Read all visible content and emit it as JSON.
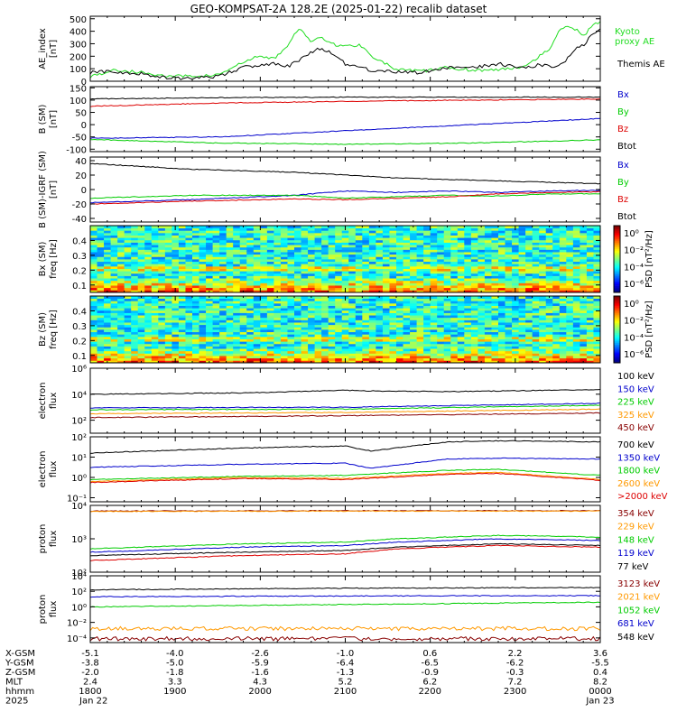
{
  "title": "GEO-KOMPSAT-2A 128.2E (2025-01-22) recalib dataset",
  "colors": {
    "black": "#000000",
    "blue": "#0000cc",
    "green": "#00cc00",
    "red": "#dd0000",
    "orange": "#ff9900",
    "darkred": "#880000",
    "lime": "#22dd22"
  },
  "chart_data": [
    {
      "id": "ae",
      "type": "line",
      "ylabel": "AE_index [nT]",
      "yticks": [
        "0",
        "100",
        "200",
        "300",
        "400",
        "500"
      ],
      "ylim": [
        0,
        520
      ],
      "series": [
        {
          "name": "Kyoto proxy AE",
          "color": "#22dd22",
          "x": [
            0,
            0.02,
            0.05,
            0.1,
            0.15,
            0.2,
            0.25,
            0.3,
            0.33,
            0.36,
            0.39,
            0.41,
            0.43,
            0.45,
            0.47,
            0.5,
            0.53,
            0.55,
            0.6,
            0.65,
            0.7,
            0.75,
            0.8,
            0.85,
            0.88,
            0.9,
            0.92,
            0.93,
            0.95,
            0.97,
            0.98,
            1.0
          ],
          "y": [
            40,
            60,
            90,
            70,
            40,
            40,
            50,
            150,
            200,
            180,
            300,
            430,
            320,
            360,
            300,
            280,
            290,
            210,
            90,
            80,
            110,
            90,
            90,
            120,
            200,
            260,
            400,
            440,
            420,
            360,
            440,
            480
          ]
        },
        {
          "name": "Themis AE",
          "color": "#000000",
          "x": [
            0,
            0.02,
            0.05,
            0.1,
            0.15,
            0.2,
            0.25,
            0.3,
            0.33,
            0.36,
            0.39,
            0.41,
            0.43,
            0.45,
            0.47,
            0.5,
            0.53,
            0.55,
            0.6,
            0.65,
            0.7,
            0.75,
            0.8,
            0.85,
            0.88,
            0.9,
            0.92,
            0.93,
            0.95,
            0.97,
            0.98,
            1.0
          ],
          "y": [
            70,
            80,
            70,
            60,
            30,
            20,
            40,
            110,
            130,
            140,
            120,
            170,
            230,
            260,
            230,
            140,
            110,
            90,
            70,
            70,
            110,
            110,
            140,
            100,
            130,
            120,
            120,
            150,
            260,
            300,
            360,
            420
          ]
        }
      ],
      "legend": [
        "Kyoto",
        "proxy AE",
        "Themis AE"
      ]
    },
    {
      "id": "bsm",
      "type": "line",
      "ylabel": "B (SM) [nT]",
      "yticks": [
        "-100",
        "-50",
        "0",
        "50",
        "100",
        "150"
      ],
      "ylim": [
        -110,
        155
      ],
      "series": [
        {
          "name": "Bx",
          "color": "#0000cc",
          "x": [
            0,
            0.25,
            0.5,
            0.75,
            1.0
          ],
          "y": [
            -55,
            -50,
            -25,
            0,
            25
          ]
        },
        {
          "name": "By",
          "color": "#00cc00",
          "x": [
            0,
            0.25,
            0.5,
            0.75,
            1.0
          ],
          "y": [
            -60,
            -75,
            -80,
            -75,
            -62
          ]
        },
        {
          "name": "Bz",
          "color": "#dd0000",
          "x": [
            0,
            0.25,
            0.5,
            0.75,
            1.0
          ],
          "y": [
            75,
            88,
            95,
            100,
            105
          ]
        },
        {
          "name": "Btot",
          "color": "#000000",
          "x": [
            0,
            0.25,
            0.5,
            0.75,
            1.0
          ],
          "y": [
            105,
            110,
            112,
            112,
            112
          ]
        }
      ]
    },
    {
      "id": "bigrf",
      "type": "line",
      "ylabel": "B (SM)-IGRF (SM) [nT]",
      "yticks": [
        "-40",
        "-20",
        "0",
        "20",
        "40"
      ],
      "ylim": [
        -45,
        45
      ],
      "series": [
        {
          "name": "Bx",
          "color": "#0000cc",
          "x": [
            0,
            0.2,
            0.4,
            0.5,
            0.6,
            0.7,
            0.8,
            0.9,
            1.0
          ],
          "y": [
            -18,
            -14,
            -8,
            -2,
            -4,
            -2,
            -4,
            -2,
            -1
          ]
        },
        {
          "name": "By",
          "color": "#00cc00",
          "x": [
            0,
            0.2,
            0.4,
            0.5,
            0.6,
            0.7,
            0.8,
            0.9,
            1.0
          ],
          "y": [
            -12,
            -8,
            -8,
            -12,
            -10,
            -8,
            -9,
            -6,
            -6
          ]
        },
        {
          "name": "Bz",
          "color": "#dd0000",
          "x": [
            0,
            0.2,
            0.4,
            0.5,
            0.6,
            0.7,
            0.8,
            0.9,
            1.0
          ],
          "y": [
            -20,
            -16,
            -13,
            -14,
            -12,
            -10,
            -6,
            -4,
            -3
          ]
        },
        {
          "name": "Btot",
          "color": "#000000",
          "x": [
            0,
            0.1,
            0.2,
            0.3,
            0.4,
            0.5,
            0.6,
            0.7,
            0.8,
            0.9,
            1.0
          ],
          "y": [
            36,
            32,
            28,
            26,
            24,
            20,
            16,
            14,
            12,
            10,
            8
          ]
        }
      ]
    },
    {
      "id": "bxspec",
      "type": "heatmap",
      "ylabel": "Bx (SM) freq [Hz]",
      "yticks": [
        "0.1",
        "0.2",
        "0.3",
        "0.4"
      ],
      "ylim": [
        0.05,
        0.5
      ],
      "colorbar": {
        "label": "PSD [nT²/Hz]",
        "ticks": [
          "10⁰",
          "10⁻²",
          "10⁻⁴",
          "10⁻⁶"
        ]
      }
    },
    {
      "id": "bzspec",
      "type": "heatmap",
      "ylabel": "Bz (SM) freq [Hz]",
      "yticks": [
        "0.1",
        "0.2",
        "0.3",
        "0.4"
      ],
      "ylim": [
        0.05,
        0.5
      ],
      "colorbar": {
        "label": "PSD [nT²/Hz]",
        "ticks": [
          "10⁰",
          "10⁻²",
          "10⁻⁴",
          "10⁻⁶"
        ]
      }
    },
    {
      "id": "eflux1",
      "type": "line",
      "ylabel": "electron flux",
      "log": true,
      "yticks": [
        "10²",
        "10⁴",
        "10⁶"
      ],
      "ylim": [
        1,
        6
      ],
      "series": [
        {
          "name": "100 keV",
          "color": "#000000",
          "x": [
            0,
            0.3,
            0.5,
            0.55,
            0.7,
            1.0
          ],
          "y": [
            4.0,
            4.1,
            4.3,
            4.25,
            4.2,
            4.35
          ]
        },
        {
          "name": "150 keV",
          "color": "#0000cc",
          "x": [
            0,
            0.5,
            1.0
          ],
          "y": [
            2.95,
            3.0,
            3.3
          ]
        },
        {
          "name": "225 keV",
          "color": "#00cc00",
          "x": [
            0,
            0.5,
            1.0
          ],
          "y": [
            2.8,
            2.85,
            3.15
          ]
        },
        {
          "name": "325 keV",
          "color": "#ff9900",
          "x": [
            0,
            0.5,
            1.0
          ],
          "y": [
            2.5,
            2.6,
            2.85
          ]
        },
        {
          "name": "450 keV",
          "color": "#880000",
          "x": [
            0,
            0.5,
            1.0
          ],
          "y": [
            2.2,
            2.35,
            2.55
          ]
        }
      ]
    },
    {
      "id": "eflux2",
      "type": "line",
      "ylabel": "electron flux",
      "log": true,
      "yticks": [
        "10⁻¹",
        "10⁰",
        "10¹",
        "10²"
      ],
      "ylim": [
        -1.2,
        2
      ],
      "series": [
        {
          "name": "700 keV",
          "color": "#000000",
          "x": [
            0,
            0.3,
            0.5,
            0.55,
            0.7,
            0.8,
            1.0
          ],
          "y": [
            1.2,
            1.45,
            1.55,
            1.3,
            1.75,
            1.8,
            1.75
          ]
        },
        {
          "name": "1350 keV",
          "color": "#0000cc",
          "x": [
            0,
            0.3,
            0.5,
            0.55,
            0.7,
            0.8,
            1.0
          ],
          "y": [
            0.5,
            0.65,
            0.7,
            0.45,
            0.9,
            0.95,
            0.9
          ]
        },
        {
          "name": "1800 keV",
          "color": "#00cc00",
          "x": [
            0,
            0.3,
            0.5,
            0.7,
            0.8,
            1.0
          ],
          "y": [
            -0.1,
            0.05,
            0.1,
            0.35,
            0.4,
            0.1
          ]
        },
        {
          "name": "2600 keV",
          "color": "#ff9900",
          "x": [
            0,
            0.3,
            0.5,
            0.7,
            0.8,
            1.0
          ],
          "y": [
            -0.2,
            0.0,
            -0.05,
            0.2,
            0.25,
            -0.1
          ]
        },
        {
          "name": ">2000 keV",
          "color": "#dd0000",
          "x": [
            0,
            0.3,
            0.5,
            0.7,
            0.8,
            1.0
          ],
          "y": [
            -0.25,
            -0.05,
            -0.1,
            0.15,
            0.2,
            -0.15
          ]
        }
      ]
    },
    {
      "id": "pflux1",
      "type": "line",
      "ylabel": "proton flux",
      "log": true,
      "yticks": [
        "10²",
        "10³",
        "10⁴"
      ],
      "ylim": [
        2,
        4
      ],
      "series": [
        {
          "name": "354 keV",
          "color": "#880000",
          "x": [
            0,
            0.5,
            1.0
          ],
          "y": [
            3.83,
            3.84,
            3.84
          ]
        },
        {
          "name": "229 keV",
          "color": "#ff9900",
          "x": [
            0,
            0.5,
            1.0
          ],
          "y": [
            3.82,
            3.83,
            3.83
          ]
        },
        {
          "name": "148 keV",
          "color": "#00cc00",
          "x": [
            0,
            0.3,
            0.5,
            0.6,
            0.8,
            1.0
          ],
          "y": [
            2.7,
            2.85,
            2.9,
            3.0,
            3.1,
            3.05
          ]
        },
        {
          "name": "119 keV",
          "color": "#0000cc",
          "x": [
            0,
            0.3,
            0.5,
            0.6,
            0.8,
            1.0
          ],
          "y": [
            2.6,
            2.75,
            2.8,
            2.9,
            3.0,
            2.95
          ]
        },
        {
          "name": "77 keV",
          "color": "#000000",
          "x": [
            0,
            0.3,
            0.5,
            0.6,
            0.8,
            1.0
          ],
          "y": [
            2.5,
            2.6,
            2.65,
            2.75,
            2.85,
            2.8
          ]
        }
      ],
      "extra_series": [
        {
          "color": "#dd0000",
          "x": [
            0,
            0.3,
            0.5,
            0.6,
            0.8,
            1.0
          ],
          "y": [
            2.35,
            2.5,
            2.55,
            2.7,
            2.8,
            2.75
          ]
        }
      ]
    },
    {
      "id": "pflux2",
      "type": "line",
      "ylabel": "proton flux",
      "log": true,
      "yticks": [
        "10⁻⁴",
        "10⁻²",
        "10⁰",
        "10²",
        "10⁴"
      ],
      "ylim": [
        -4.6,
        4
      ],
      "series": [
        {
          "name": "3123 keV",
          "color": "#880000",
          "x": [
            0,
            1.0
          ],
          "y": [
            -4.1,
            -4.1
          ]
        },
        {
          "name": "2021 keV",
          "color": "#ff9900",
          "x": [
            0,
            1.0
          ],
          "y": [
            -2.8,
            -2.8
          ]
        },
        {
          "name": "1052 keV",
          "color": "#00cc00",
          "x": [
            0,
            0.5,
            1.0
          ],
          "y": [
            0.0,
            0.3,
            0.6
          ]
        },
        {
          "name": "681 keV",
          "color": "#0000cc",
          "x": [
            0,
            0.5,
            1.0
          ],
          "y": [
            1.3,
            1.4,
            1.45
          ]
        },
        {
          "name": "548 keV",
          "color": "#000000",
          "x": [
            0,
            0.5,
            1.0
          ],
          "y": [
            2.2,
            2.4,
            2.5
          ]
        }
      ]
    }
  ],
  "xaxis": {
    "rows": [
      {
        "label": "X-GSM",
        "values": [
          "-5.1",
          "-4.0",
          "-2.6",
          "-1.0",
          "0.6",
          "2.2",
          "3.6"
        ]
      },
      {
        "label": "Y-GSM",
        "values": [
          "-3.8",
          "-5.0",
          "-5.9",
          "-6.4",
          "-6.5",
          "-6.2",
          "-5.5"
        ]
      },
      {
        "label": "Z-GSM",
        "values": [
          "-2.0",
          "-1.8",
          "-1.6",
          "-1.3",
          "-0.9",
          "-0.3",
          "0.4"
        ]
      },
      {
        "label": "MLT",
        "values": [
          "2.4",
          "3.3",
          "4.3",
          "5.2",
          "6.2",
          "7.2",
          "8.2"
        ]
      },
      {
        "label": "hhmm",
        "values": [
          "1800",
          "1900",
          "2000",
          "2100",
          "2200",
          "2300",
          "0000"
        ]
      },
      {
        "label": "2025",
        "values": [
          "Jan 22",
          "",
          "",
          "",
          "",
          "",
          "Jan 23"
        ]
      }
    ]
  }
}
